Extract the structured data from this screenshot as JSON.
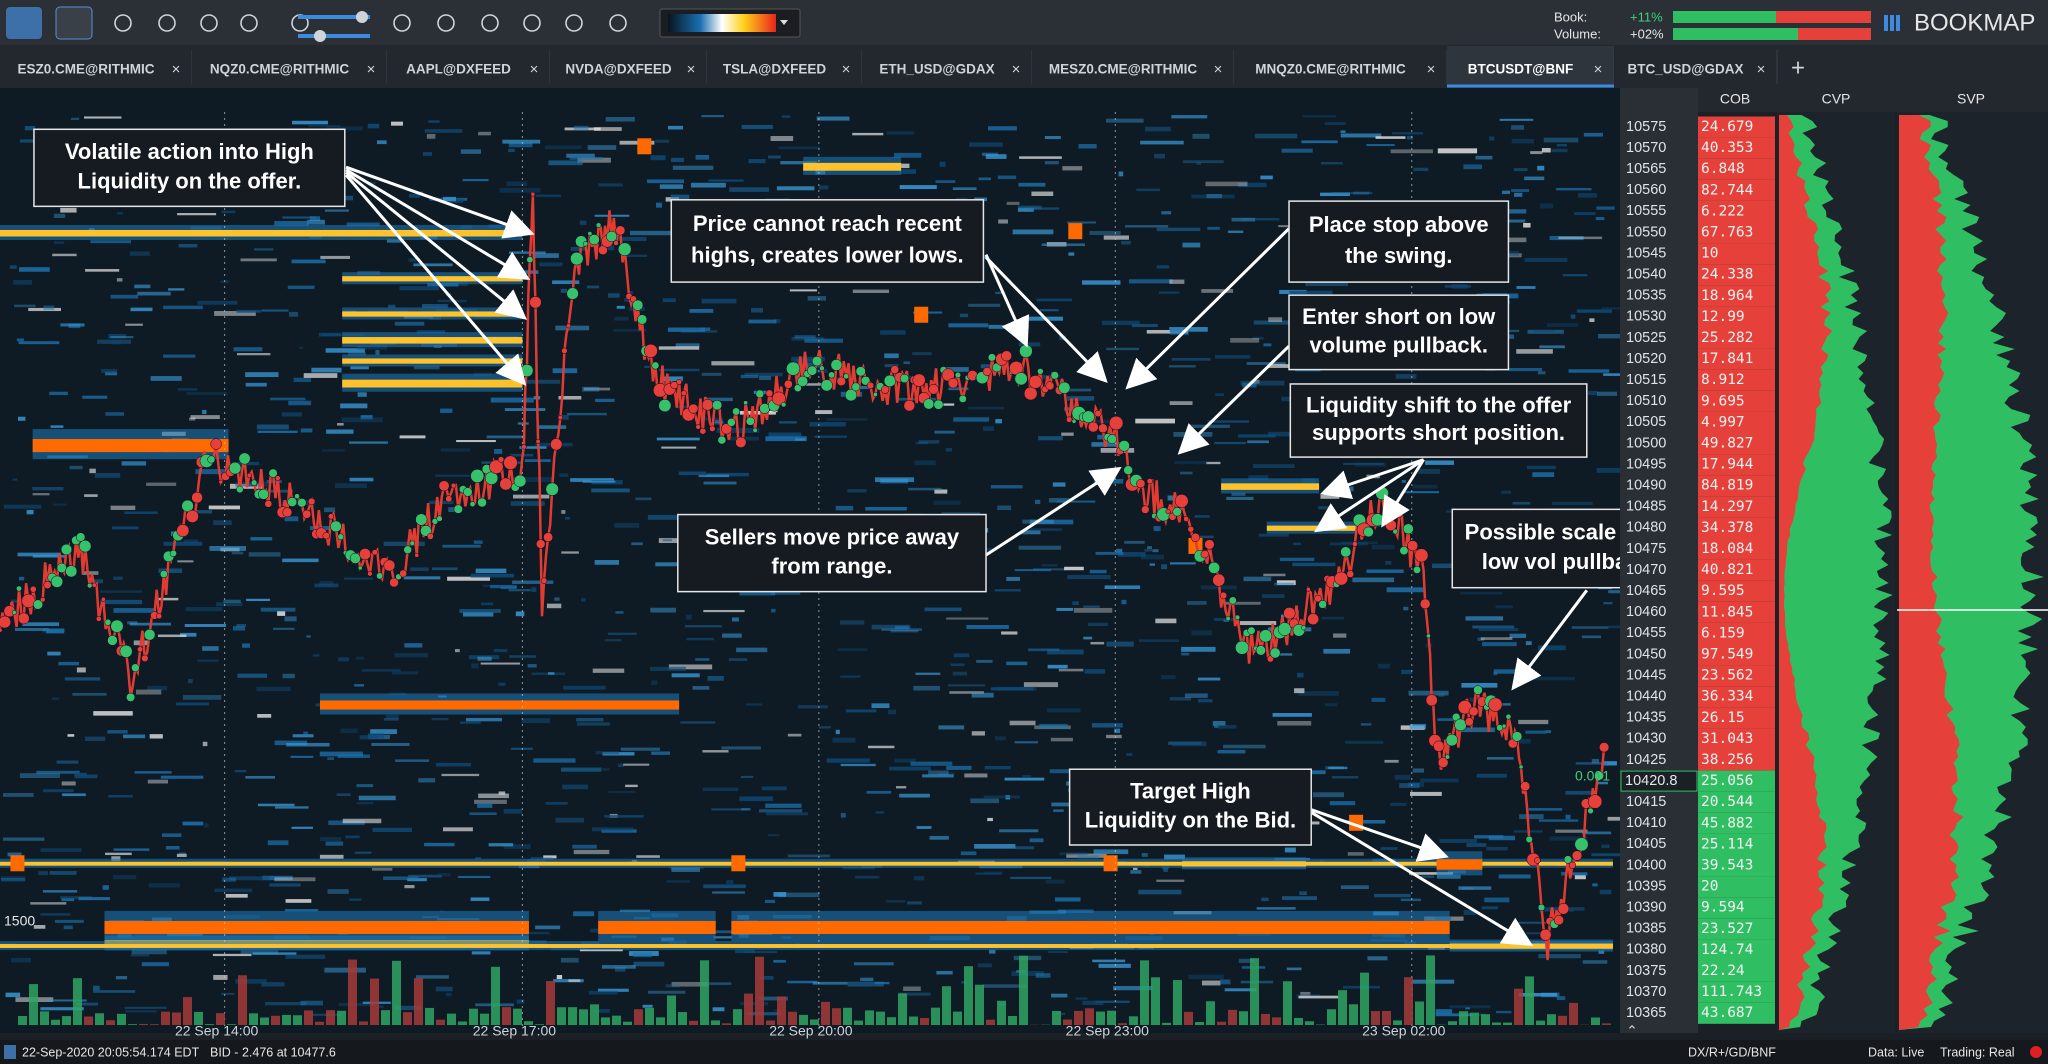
{
  "toolbar": {
    "book_label": "Book:",
    "book_change": "+11%",
    "volume_label": "Volume:",
    "volume_change": "+02%",
    "brand": "BOOKMAP"
  },
  "tabs": [
    "ESZ0.CME@RITHMIC",
    "NQZ0.CME@RITHMIC",
    "AAPL@DXFEED",
    "NVDA@DXFEED",
    "TSLA@DXFEED",
    "ETH_USD@GDAX",
    "MESZ0.CME@RITHMIC",
    "MNQZ0.CME@RITHMIC",
    "BTCUSDT@BNF",
    "BTC_USD@GDAX"
  ],
  "panel_headers": [
    "COB",
    "CVP",
    "SVP"
  ],
  "annotations": [
    {
      "lines": [
        "Volatile action into High",
        "Liquidity on the offer."
      ]
    },
    {
      "lines": [
        "Price cannot reach recent",
        "highs, creates lower lows."
      ]
    },
    {
      "lines": [
        "Place stop above",
        "the swing."
      ]
    },
    {
      "lines": [
        "Enter short on low",
        "volume pullback."
      ]
    },
    {
      "lines": [
        "Liquidity shift to the offer",
        "supports short position."
      ]
    },
    {
      "lines": [
        "Sellers move price away",
        "from range."
      ]
    },
    {
      "lines": [
        "Possible scale in on",
        "low vol pullback."
      ]
    },
    {
      "lines": [
        "Target High",
        "Liquidity on the Bid."
      ]
    }
  ],
  "price_ladder": {
    "prices": [
      10575,
      10570,
      10565,
      10560,
      10555,
      10550,
      10545,
      10540,
      10535,
      10530,
      10525,
      10520,
      10515,
      10510,
      10505,
      10500,
      10495,
      10490,
      10485,
      10480,
      10475,
      10470,
      10465,
      10460,
      10455,
      10450,
      10445,
      10440,
      10435,
      10430,
      10425,
      10420,
      10415,
      10410,
      10405,
      10400,
      10395,
      10390,
      10385,
      10380,
      10375,
      10370,
      10365
    ],
    "cob": [
      24.679,
      40.353,
      6.848,
      82.744,
      6.222,
      67.763,
      10,
      24.338,
      18.964,
      12.99,
      25.282,
      17.841,
      8.912,
      9.695,
      4.997,
      49.827,
      17.944,
      84.819,
      14.297,
      34.378,
      18.084,
      40.821,
      9.595,
      11.845,
      6.159,
      97.549,
      23.562,
      36.334,
      26.15,
      31.043,
      38.256,
      25.056,
      20.544,
      45.882,
      25.114,
      39.543,
      20,
      9.594,
      23.527,
      124.74,
      22.24,
      111.743,
      43.687
    ],
    "current_price": "10420.8"
  },
  "chart_labels": {
    "size_marker": "1500",
    "last_size": "0.001"
  },
  "time_axis": [
    "22 Sep 14:00",
    "22 Sep 17:00",
    "22 Sep 20:00",
    "22 Sep 23:00",
    "23 Sep 02:00"
  ],
  "status_bar": {
    "timestamp": "22-Sep-2020 20:05:54.174 EDT",
    "last_trade": "BID - 2.476 at 10477.6",
    "connection": "DX/R+/GD/BNF",
    "data_mode": "Data: Live",
    "trading_mode": "Trading: Real"
  }
}
